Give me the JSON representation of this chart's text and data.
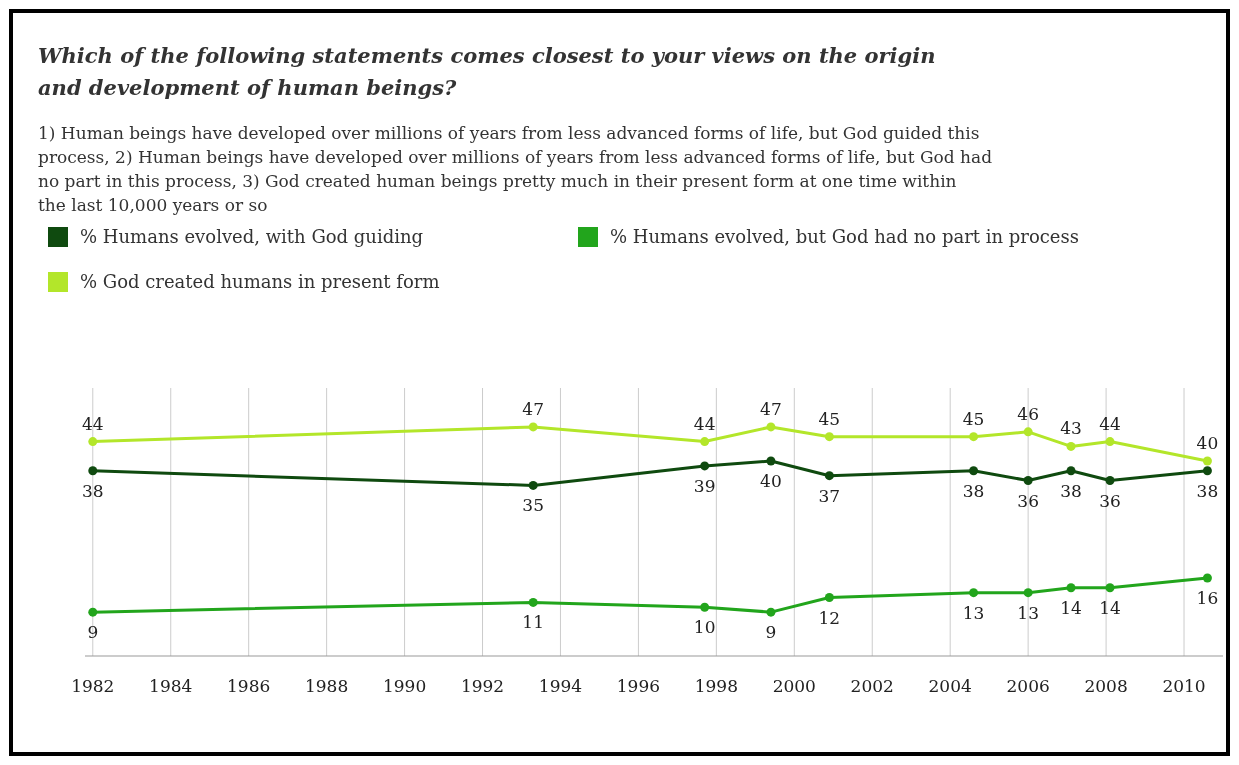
{
  "chart_data": {
    "type": "line",
    "title": "Which of the following statements comes closest to your views on the origin and development of human beings?",
    "subtitle": "1) Human beings have developed over millions of years from less advanced forms of life, but God guided this process, 2) Human beings have developed over millions of years from less advanced forms of life, but God had no part in this process, 3) God created human beings pretty much in their present form at one time within the last 10,000 years or so",
    "x": [
      1982,
      1993.3,
      1997.7,
      1999.4,
      2000.9,
      2004.6,
      2006.0,
      2007.1,
      2008.1,
      2010.6
    ],
    "xlim": [
      1981.8,
      2011.0
    ],
    "xticks": [
      1982,
      1984,
      1986,
      1988,
      1990,
      1992,
      1994,
      1996,
      1998,
      2000,
      2002,
      2004,
      2006,
      2008,
      2010
    ],
    "series": [
      {
        "name": "% Humans evolved, with God guiding",
        "color": "#0f4a0f",
        "values": [
          38,
          35,
          39,
          40,
          37,
          38,
          36,
          38,
          36,
          38
        ]
      },
      {
        "name": "% Humans evolved, but God had no part in process",
        "color": "#22a51c",
        "values": [
          9,
          11,
          10,
          9,
          12,
          13,
          13,
          14,
          14,
          16
        ]
      },
      {
        "name": "% God created humans in present form",
        "color": "#b3e62a",
        "values": [
          44,
          47,
          44,
          47,
          45,
          45,
          46,
          43,
          44,
          40
        ]
      }
    ],
    "data_labels": true,
    "grid": "x",
    "legend": "top",
    "marker": "circle",
    "line_style": "solid"
  }
}
